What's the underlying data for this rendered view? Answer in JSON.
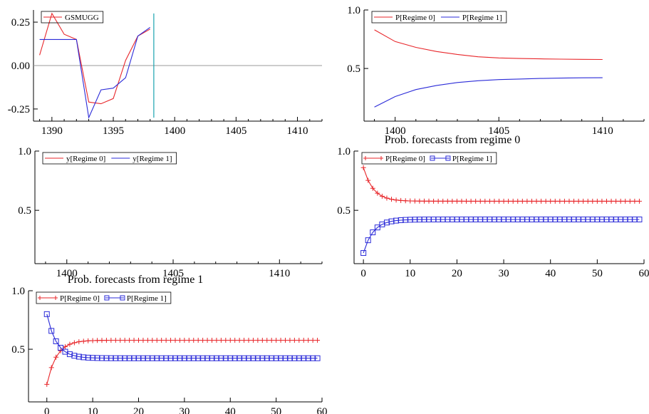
{
  "colors": {
    "red": "#e8262a",
    "blue": "#2b2bd8",
    "teal": "#1aa3b0",
    "axis": "#000000",
    "zero_line": "#999999"
  },
  "chart_data": [
    {
      "type": "line",
      "title": "",
      "xlim": [
        1388.5,
        1412
      ],
      "ylim": [
        -0.32,
        0.32
      ],
      "x_ticks": [
        1390,
        1395,
        1400,
        1405,
        1410
      ],
      "y_ticks": [
        0.25,
        0.0,
        -0.25
      ],
      "y_tick_labels": [
        "0.25",
        "0.00",
        "-0.25"
      ],
      "zero_line": true,
      "vline": {
        "x": 1398.3,
        "y_from": -0.3,
        "y_to": 0.3
      },
      "legend": [
        "GSMUGG"
      ],
      "series": [
        {
          "name": "GSMUGG",
          "color": "red",
          "x": [
            1389,
            1390,
            1391,
            1392,
            1393,
            1394,
            1395,
            1396,
            1397,
            1398
          ],
          "y": [
            0.06,
            0.3,
            0.18,
            0.15,
            -0.21,
            -0.22,
            -0.19,
            0.03,
            0.17,
            0.21
          ]
        },
        {
          "name": "",
          "color": "blue",
          "x": [
            1389,
            1390,
            1391,
            1392,
            1393,
            1394,
            1395,
            1396,
            1397,
            1398
          ],
          "y": [
            0.15,
            0.15,
            0.15,
            0.15,
            -0.3,
            -0.14,
            -0.13,
            -0.07,
            0.17,
            0.22
          ]
        }
      ]
    },
    {
      "type": "line",
      "title": "",
      "xlim": [
        1398.5,
        1412
      ],
      "ylim": [
        0.05,
        1.0
      ],
      "x_ticks": [
        1400,
        1405,
        1410
      ],
      "y_ticks": [
        1.0,
        0.5
      ],
      "y_tick_labels": [
        "1.0",
        "0.5"
      ],
      "legend": [
        "P[Regime 0]",
        "P[Regime 1]"
      ],
      "series": [
        {
          "name": "P[Regime 0]",
          "color": "red",
          "x": [
            1399,
            1400,
            1401,
            1402,
            1403,
            1404,
            1405,
            1406,
            1407,
            1408,
            1409,
            1410
          ],
          "y": [
            0.83,
            0.73,
            0.68,
            0.645,
            0.62,
            0.6,
            0.59,
            0.585,
            0.582,
            0.58,
            0.578,
            0.577
          ]
        },
        {
          "name": "P[Regime 1]",
          "color": "blue",
          "x": [
            1399,
            1400,
            1401,
            1402,
            1403,
            1404,
            1405,
            1406,
            1407,
            1408,
            1409,
            1410
          ],
          "y": [
            0.17,
            0.26,
            0.32,
            0.355,
            0.38,
            0.395,
            0.405,
            0.41,
            0.415,
            0.418,
            0.42,
            0.421
          ]
        }
      ]
    },
    {
      "type": "line",
      "title": "",
      "xlim": [
        1398.5,
        1412
      ],
      "ylim": [
        0.05,
        1.0
      ],
      "x_ticks": [
        1400,
        1405,
        1410
      ],
      "y_ticks": [
        1.0,
        0.5
      ],
      "y_tick_labels": [
        "1.0",
        "0.5"
      ],
      "legend": [
        "y[Regime 0]",
        "y[Regime 1]"
      ],
      "series": []
    },
    {
      "type": "line",
      "title": "Prob. forecasts from regime 0",
      "xlim": [
        -2,
        60
      ],
      "ylim": [
        0.05,
        1.0
      ],
      "x_ticks": [
        0,
        10,
        20,
        30,
        40,
        50,
        60
      ],
      "y_ticks": [
        1.0,
        0.5
      ],
      "y_tick_labels": [
        "1.0",
        "0.5"
      ],
      "legend": [
        "P[Regime 0]",
        "P[Regime 1]"
      ],
      "series": [
        {
          "name": "P[Regime 0]",
          "color": "red",
          "marker": "plus",
          "start": 0.86,
          "target": 0.577,
          "decay": 0.62
        },
        {
          "name": "P[Regime 1]",
          "color": "blue",
          "marker": "square",
          "start": 0.14,
          "target": 0.423,
          "decay": 0.62
        }
      ]
    },
    {
      "type": "line",
      "title": "Prob. forecasts from regime 1",
      "xlim": [
        -4,
        60
      ],
      "ylim": [
        0.05,
        1.0
      ],
      "x_ticks": [
        0,
        10,
        20,
        30,
        40,
        50,
        60
      ],
      "y_ticks": [
        1.0,
        0.5
      ],
      "y_tick_labels": [
        "1.0",
        "0.5"
      ],
      "legend": [
        "P[Regime 0]",
        "P[Regime 1]"
      ],
      "series": [
        {
          "name": "P[Regime 0]",
          "color": "red",
          "marker": "plus",
          "start": 0.2,
          "target": 0.577,
          "decay": 0.62
        },
        {
          "name": "P[Regime 1]",
          "color": "blue",
          "marker": "square",
          "start": 0.8,
          "target": 0.423,
          "decay": 0.62
        }
      ]
    }
  ]
}
